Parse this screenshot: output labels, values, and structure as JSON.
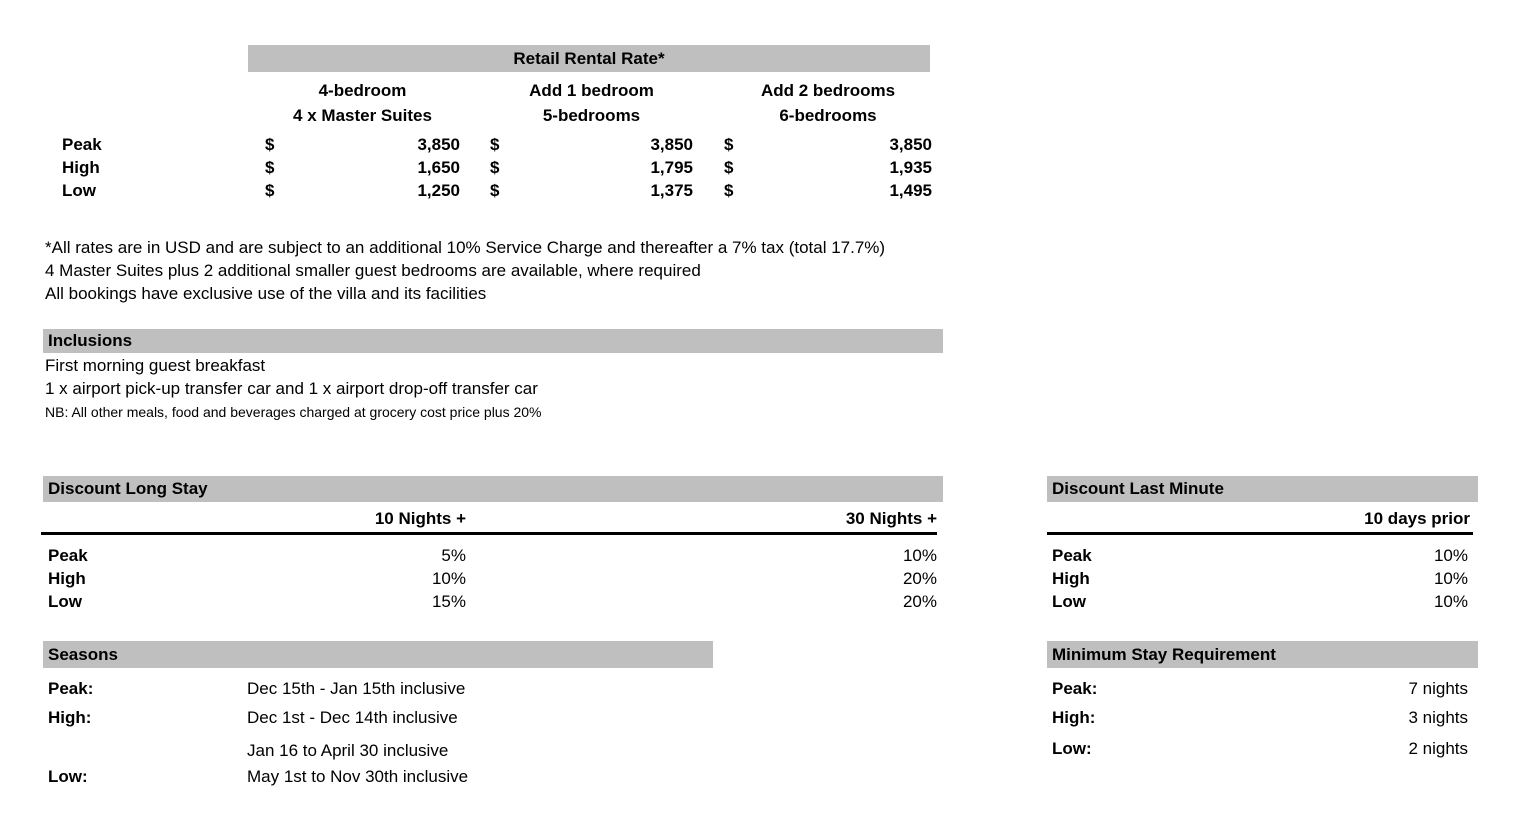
{
  "retail_table": {
    "title": "Retail Rental Rate*",
    "currency_symbol": "$",
    "columns": [
      {
        "line1": "4-bedroom",
        "line2": "4 x Master Suites"
      },
      {
        "line1": "Add 1 bedroom",
        "line2": "5-bedrooms"
      },
      {
        "line1": "Add 2 bedrooms",
        "line2": "6-bedrooms"
      }
    ],
    "rows": [
      {
        "label": "Peak",
        "values": [
          "3,850",
          "3,850",
          "3,850"
        ]
      },
      {
        "label": "High",
        "values": [
          "1,650",
          "1,795",
          "1,935"
        ]
      },
      {
        "label": "Low",
        "values": [
          "1,250",
          "1,375",
          "1,495"
        ]
      }
    ]
  },
  "notes": [
    "*All rates are in USD and are subject to an additional 10% Service Charge and thereafter a 7% tax (total 17.7%)",
    "4 Master Suites plus 2 additional smaller guest bedrooms are available, where required",
    "All bookings have exclusive use of the villa and its facilities"
  ],
  "inclusions": {
    "title": "Inclusions",
    "items": [
      "First morning guest breakfast",
      "1 x airport pick-up transfer car and 1 x airport drop-off transfer car"
    ],
    "note": "NB: All other meals, food and beverages charged at grocery cost price plus 20%"
  },
  "discount_long_stay": {
    "title": "Discount Long Stay",
    "columns": [
      "10 Nights +",
      "30 Nights +"
    ],
    "rows": [
      {
        "label": "Peak",
        "values": [
          "5%",
          "10%"
        ]
      },
      {
        "label": "High",
        "values": [
          "10%",
          "20%"
        ]
      },
      {
        "label": "Low",
        "values": [
          "15%",
          "20%"
        ]
      }
    ]
  },
  "discount_last_minute": {
    "title": "Discount Last Minute",
    "column": "10 days prior",
    "rows": [
      {
        "label": "Peak",
        "value": "10%"
      },
      {
        "label": "High",
        "value": "10%"
      },
      {
        "label": "Low",
        "value": "10%"
      }
    ]
  },
  "seasons": {
    "title": "Seasons",
    "rows": [
      {
        "label": "Peak:",
        "value": "Dec 15th - Jan 15th inclusive"
      },
      {
        "label": "High:",
        "value": "Dec 1st - Dec 14th inclusive"
      },
      {
        "label": "",
        "value": "Jan 16 to April 30 inclusive"
      },
      {
        "label": "Low:",
        "value": "May 1st to Nov 30th inclusive"
      }
    ]
  },
  "minimum_stay": {
    "title": "Minimum Stay Requirement",
    "rows": [
      {
        "label": "Peak:",
        "value": "7 nights"
      },
      {
        "label": "High:",
        "value": "3 nights"
      },
      {
        "label": "Low:",
        "value": "2 nights"
      }
    ]
  },
  "colors": {
    "header_bar": "#bfbfbf",
    "text": "#000000",
    "background": "#ffffff",
    "rule": "#000000"
  }
}
